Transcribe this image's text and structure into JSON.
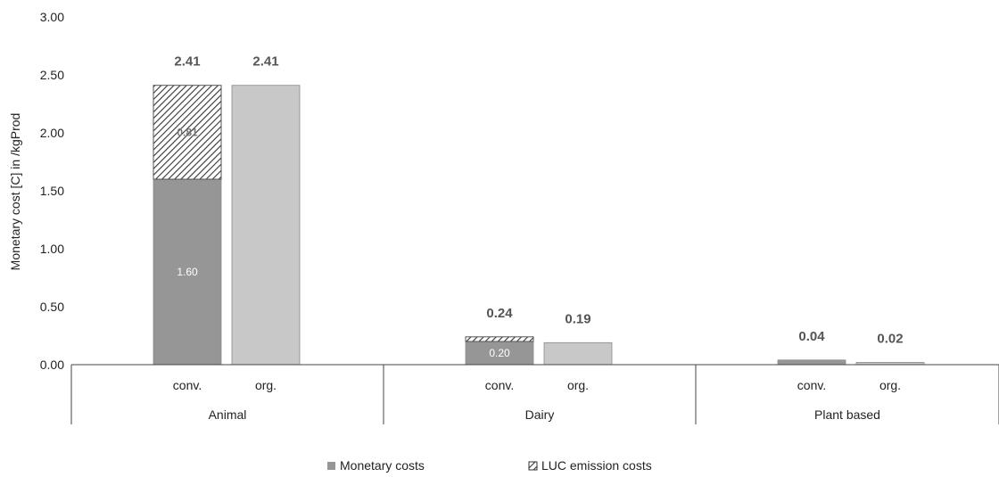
{
  "chart_data": {
    "type": "bar",
    "stacked": true,
    "ylabel": "Monetary cost [C] in  /kgProd",
    "ylim": [
      0,
      3.0
    ],
    "yticks": [
      "0.00",
      "0.50",
      "1.00",
      "1.50",
      "2.00",
      "2.50",
      "3.00"
    ],
    "grid": false,
    "legend_position": "bottom",
    "groups": [
      "Animal",
      "Dairy",
      "Plant based"
    ],
    "subcategories": [
      "conv.",
      "org."
    ],
    "bars": [
      {
        "group": "Animal",
        "sub": "conv.",
        "monetary": 1.6,
        "luc": 0.81,
        "total_label": "2.41",
        "monetary_label": "1.60",
        "luc_label": "0.81"
      },
      {
        "group": "Animal",
        "sub": "org.",
        "monetary": 2.41,
        "luc": 0,
        "total_label": "2.41"
      },
      {
        "group": "Dairy",
        "sub": "conv.",
        "monetary": 0.2,
        "luc": 0.04,
        "total_label": "0.24",
        "monetary_label": "0.20"
      },
      {
        "group": "Dairy",
        "sub": "org.",
        "monetary": 0.19,
        "luc": 0,
        "total_label": "0.19"
      },
      {
        "group": "Plant based",
        "sub": "conv.",
        "monetary": 0.04,
        "luc": 0,
        "total_label": "0.04"
      },
      {
        "group": "Plant based",
        "sub": "org.",
        "monetary": 0.02,
        "luc": 0,
        "total_label": "0.02"
      }
    ],
    "series": [
      {
        "name": "Monetary costs",
        "color": "#969696"
      },
      {
        "name": "LUC emission costs",
        "pattern": "diagonal-hatch"
      }
    ],
    "colors": {
      "conv_fill": "#969696",
      "org_fill": "#c8c8c8",
      "bar_stroke": "#8a8a8a",
      "hatch": "#333333"
    }
  }
}
